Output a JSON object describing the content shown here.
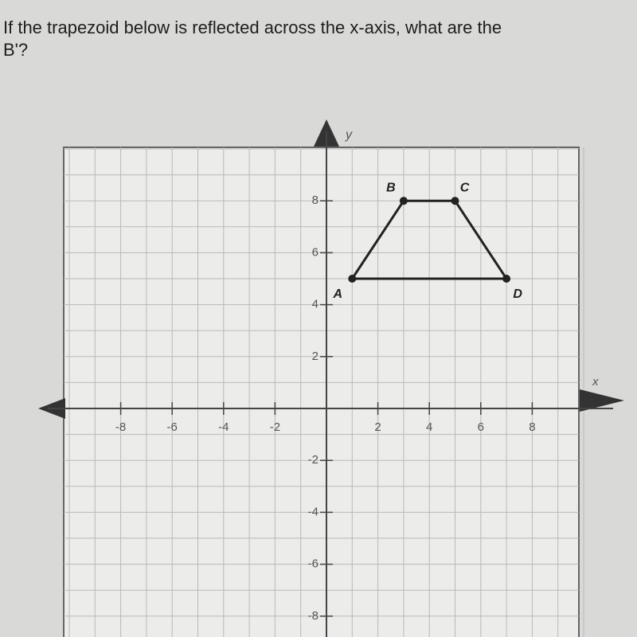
{
  "question": {
    "lines": [
      "If the trapezoid below is reflected across the x-axis, what are the",
      "B'?"
    ]
  },
  "graph": {
    "xlabel": "x",
    "ylabel": "y",
    "xlim": [
      -10,
      10
    ],
    "ylim": [
      -10,
      10
    ],
    "xticks": [
      -8,
      -6,
      -4,
      -2,
      2,
      4,
      6,
      8
    ],
    "yticks": [
      -8,
      -6,
      -4,
      -2,
      2,
      4,
      6,
      8
    ],
    "points": [
      {
        "label": "A",
        "x": 1,
        "y": 5
      },
      {
        "label": "B",
        "x": 3,
        "y": 8
      },
      {
        "label": "C",
        "x": 5,
        "y": 8
      },
      {
        "label": "D",
        "x": 7,
        "y": 5
      }
    ]
  }
}
